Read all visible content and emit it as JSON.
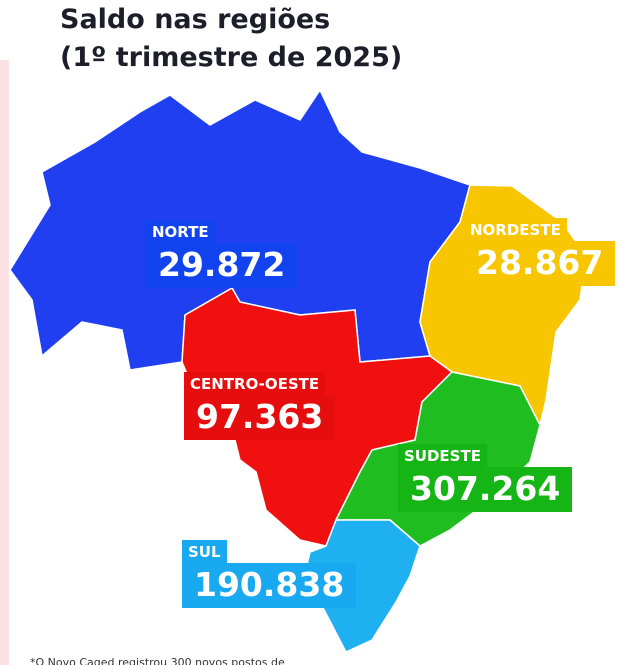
{
  "title": {
    "line1": "Saldo nas regiões",
    "line2": "(1º trimestre de 2025)"
  },
  "regions": [
    {
      "name": "NORTE",
      "value": "29.872"
    },
    {
      "name": "NORDESTE",
      "value": "28.867"
    },
    {
      "name": "CENTRO-OESTE",
      "value": "97.363"
    },
    {
      "name": "SUDESTE",
      "value": "307.264"
    },
    {
      "name": "SUL",
      "value": "190.838"
    }
  ],
  "footnote": "*O Novo Caged registrou 300 novos postos de"
}
